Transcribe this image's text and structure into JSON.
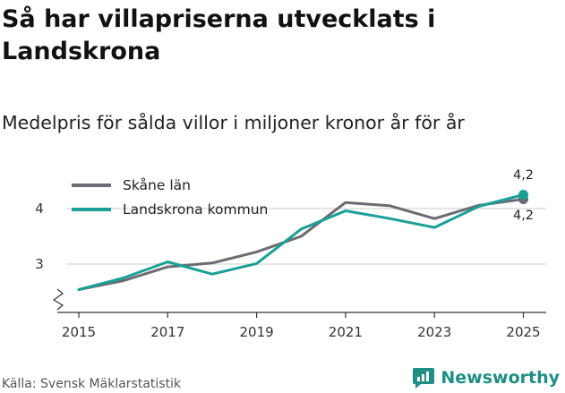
{
  "chart_data": {
    "type": "line",
    "title": "Så har villapriserna utvecklats i Landskrona",
    "subtitle": "Medelpris för sålda villor i miljoner kronor år för år",
    "x": [
      2015,
      2016,
      2017,
      2018,
      2019,
      2020,
      2021,
      2022,
      2023,
      2024,
      2025
    ],
    "x_ticks": [
      "2015",
      "2017",
      "2019",
      "2021",
      "2023",
      "2025"
    ],
    "y_ticks": [
      "3",
      "4"
    ],
    "ylim": [
      2.3,
      4.6
    ],
    "grid": true,
    "legend_position": "top-left",
    "series": [
      {
        "name": "Skåne län",
        "color": "#6b6b73",
        "values": [
          2.54,
          2.7,
          2.95,
          3.02,
          3.22,
          3.5,
          4.11,
          4.05,
          3.82,
          4.06,
          4.17
        ],
        "end_label": "4,2"
      },
      {
        "name": "Landskrona kommun",
        "color": "#1aa096",
        "values": [
          2.54,
          2.75,
          3.04,
          2.82,
          3.01,
          3.63,
          3.96,
          3.82,
          3.66,
          4.04,
          4.25
        ],
        "end_label": "4,2"
      }
    ],
    "source": "Källa: Svensk Mäklarstatistik"
  },
  "brand": {
    "name": "Newsworthy",
    "color": "#1f8f85"
  }
}
